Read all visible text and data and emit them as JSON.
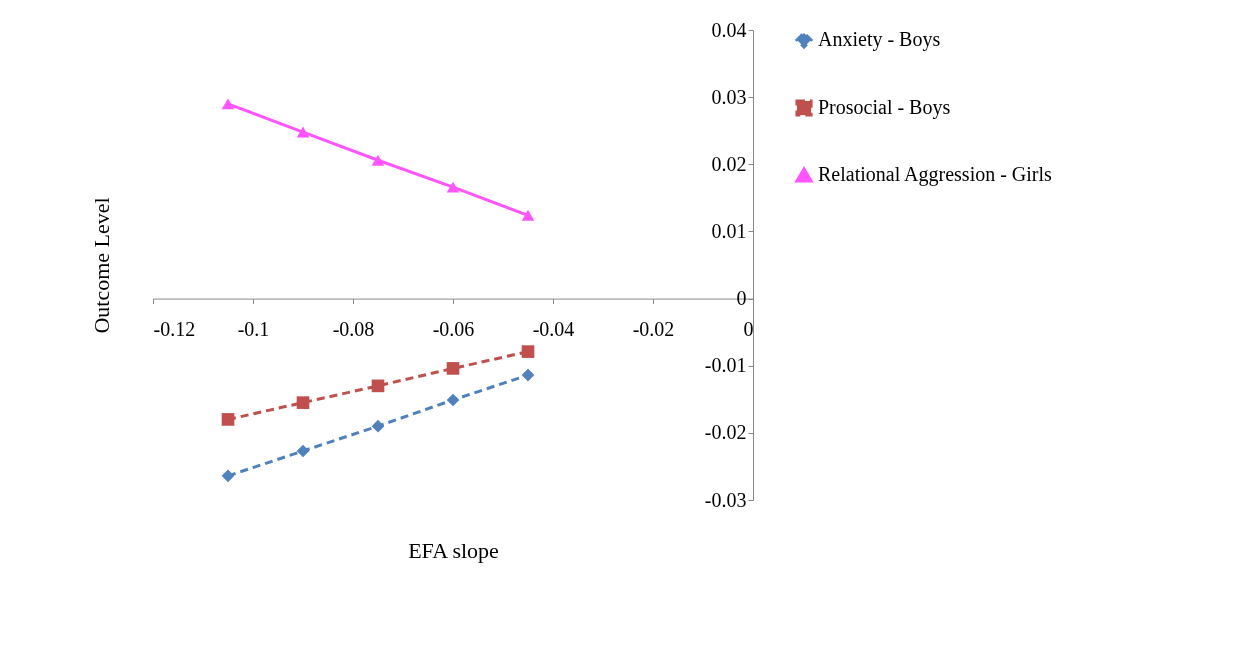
{
  "chart_data": {
    "type": "line",
    "xlabel": "EFA slope",
    "ylabel": "Outcome Level",
    "x": [
      -0.105,
      -0.09,
      -0.075,
      -0.06,
      -0.045
    ],
    "series": [
      {
        "name": "Anxiety - Boys",
        "color": "#4f81bd",
        "marker": "diamond",
        "line_style": "dashed",
        "values": [
          -0.0264,
          -0.0227,
          -0.019,
          -0.0151,
          -0.0114
        ]
      },
      {
        "name": "Prosocial - Boys",
        "color": "#c0504d",
        "marker": "square",
        "line_style": "dashed",
        "values": [
          -0.018,
          -0.0155,
          -0.013,
          -0.0104,
          -0.0079
        ]
      },
      {
        "name": "Relational Aggression - Girls",
        "color": "#ff55ff",
        "marker": "triangle",
        "line_style": "solid",
        "values": [
          0.029,
          0.0248,
          0.0206,
          0.0166,
          0.0124
        ]
      }
    ],
    "xlim": [
      -0.12,
      0
    ],
    "xticks": [
      -0.12,
      -0.1,
      -0.08,
      -0.06,
      -0.04,
      -0.02,
      0
    ],
    "ylim": [
      -0.03,
      0.04
    ],
    "yticks": [
      -0.03,
      -0.02,
      -0.01,
      0,
      0.01,
      0.02,
      0.03,
      0.04
    ],
    "grid": false,
    "legend": "right"
  }
}
